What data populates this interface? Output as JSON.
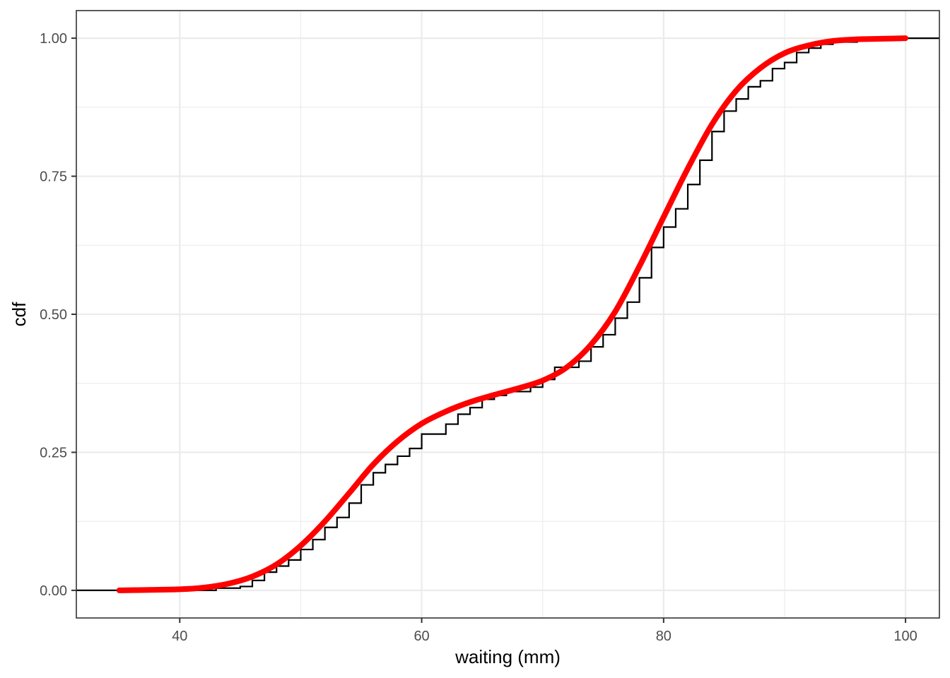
{
  "chart_data": {
    "type": "line",
    "title": "",
    "xlabel": "waiting (mm)",
    "ylabel": "cdf",
    "xlim": [
      31.45,
      102.8
    ],
    "ylim": [
      -0.05,
      1.05
    ],
    "x_ticks": [
      40,
      60,
      80,
      100
    ],
    "x_tick_labels": [
      "40",
      "60",
      "80",
      "100"
    ],
    "y_ticks": [
      0,
      0.25,
      0.5,
      0.75,
      1
    ],
    "y_tick_labels": [
      "0.00",
      "0.25",
      "0.50",
      "0.75",
      "1.00"
    ],
    "grid": true,
    "legend": "none",
    "series": [
      {
        "kind": "ecdf-step",
        "color": "#000000",
        "x": [
          43,
          45,
          46,
          47,
          48,
          49,
          50,
          51,
          52,
          53,
          54,
          55,
          56,
          57,
          58,
          59,
          60,
          62,
          63,
          64,
          65,
          66,
          67,
          69,
          70,
          71,
          73,
          74,
          75,
          76,
          77,
          78,
          79,
          80,
          81,
          82,
          83,
          84,
          85,
          86,
          87,
          88,
          89,
          90,
          91,
          92,
          93,
          94,
          96
        ],
        "y": [
          0.004,
          0.007,
          0.018,
          0.033,
          0.044,
          0.055,
          0.074,
          0.092,
          0.114,
          0.132,
          0.158,
          0.191,
          0.213,
          0.228,
          0.243,
          0.257,
          0.283,
          0.301,
          0.319,
          0.331,
          0.346,
          0.353,
          0.36,
          0.368,
          0.382,
          0.404,
          0.415,
          0.441,
          0.463,
          0.493,
          0.522,
          0.566,
          0.621,
          0.658,
          0.691,
          0.735,
          0.779,
          0.831,
          0.868,
          0.89,
          0.912,
          0.923,
          0.945,
          0.956,
          0.974,
          0.982,
          0.989,
          0.993,
          1.0
        ]
      },
      {
        "kind": "smooth-cdf",
        "color": "#ff0000",
        "x": [
          35,
          40,
          42,
          44,
          46,
          48,
          50,
          52,
          54,
          56,
          58,
          60,
          62,
          64,
          66,
          68,
          70,
          72,
          74,
          76,
          78,
          80,
          82,
          84,
          86,
          88,
          90,
          92,
          94,
          96,
          98,
          100
        ],
        "y": [
          0.0,
          0.002,
          0.005,
          0.012,
          0.025,
          0.047,
          0.081,
          0.125,
          0.176,
          0.228,
          0.27,
          0.302,
          0.324,
          0.341,
          0.354,
          0.366,
          0.38,
          0.404,
          0.445,
          0.505,
          0.587,
          0.676,
          0.764,
          0.844,
          0.905,
          0.946,
          0.973,
          0.987,
          0.995,
          0.998,
          0.999,
          1.0
        ]
      }
    ]
  }
}
